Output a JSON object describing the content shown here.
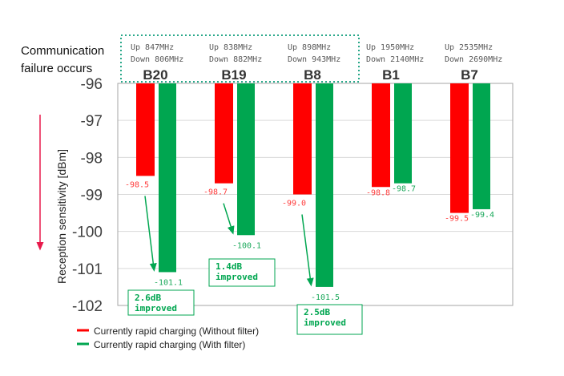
{
  "chart_data": {
    "type": "bar",
    "ylabel": "Reception sensitivity",
    "yunit": "[dBm]",
    "ylim": [
      -96,
      -102
    ],
    "yticks": [
      -96,
      -97,
      -98,
      -99,
      -100,
      -101,
      -102
    ],
    "grid": true,
    "legend_position": "bottom-left",
    "note": "Communication\nfailure occurs",
    "categories": [
      {
        "band": "B20",
        "up": "Up 847MHz",
        "down": "Down 806MHz"
      },
      {
        "band": "B19",
        "up": "Up 838MHz",
        "down": "Down 882MHz"
      },
      {
        "band": "B8",
        "up": "Up 898MHz",
        "down": "Down 943MHz"
      },
      {
        "band": "B1",
        "up": "Up 1950MHz",
        "down": "Down 2140MHz"
      },
      {
        "band": "B7",
        "up": "Up 2535MHz",
        "down": "Down 2690MHz"
      }
    ],
    "series": [
      {
        "name": "Currently rapid charging (Without filter)",
        "color": "#ff0000",
        "label_color": "#ff3b3b",
        "values": [
          -98.5,
          -98.7,
          -99.0,
          -98.8,
          -99.5
        ]
      },
      {
        "name": "Currently rapid charging (With filter)",
        "color": "#00a650",
        "label_color": "#1aa85a",
        "values": [
          -101.1,
          -100.1,
          -101.5,
          -98.7,
          -99.4
        ]
      }
    ],
    "annotations": [
      {
        "category": "B20",
        "line1": "2.6dB",
        "line2": "improved"
      },
      {
        "category": "B19",
        "line1": "1.4dB",
        "line2": "improved"
      },
      {
        "category": "B8",
        "line1": "2.5dB",
        "line2": "improved"
      }
    ],
    "highlight_color": "#2aa88a",
    "arrow_color": "#e8194b"
  }
}
